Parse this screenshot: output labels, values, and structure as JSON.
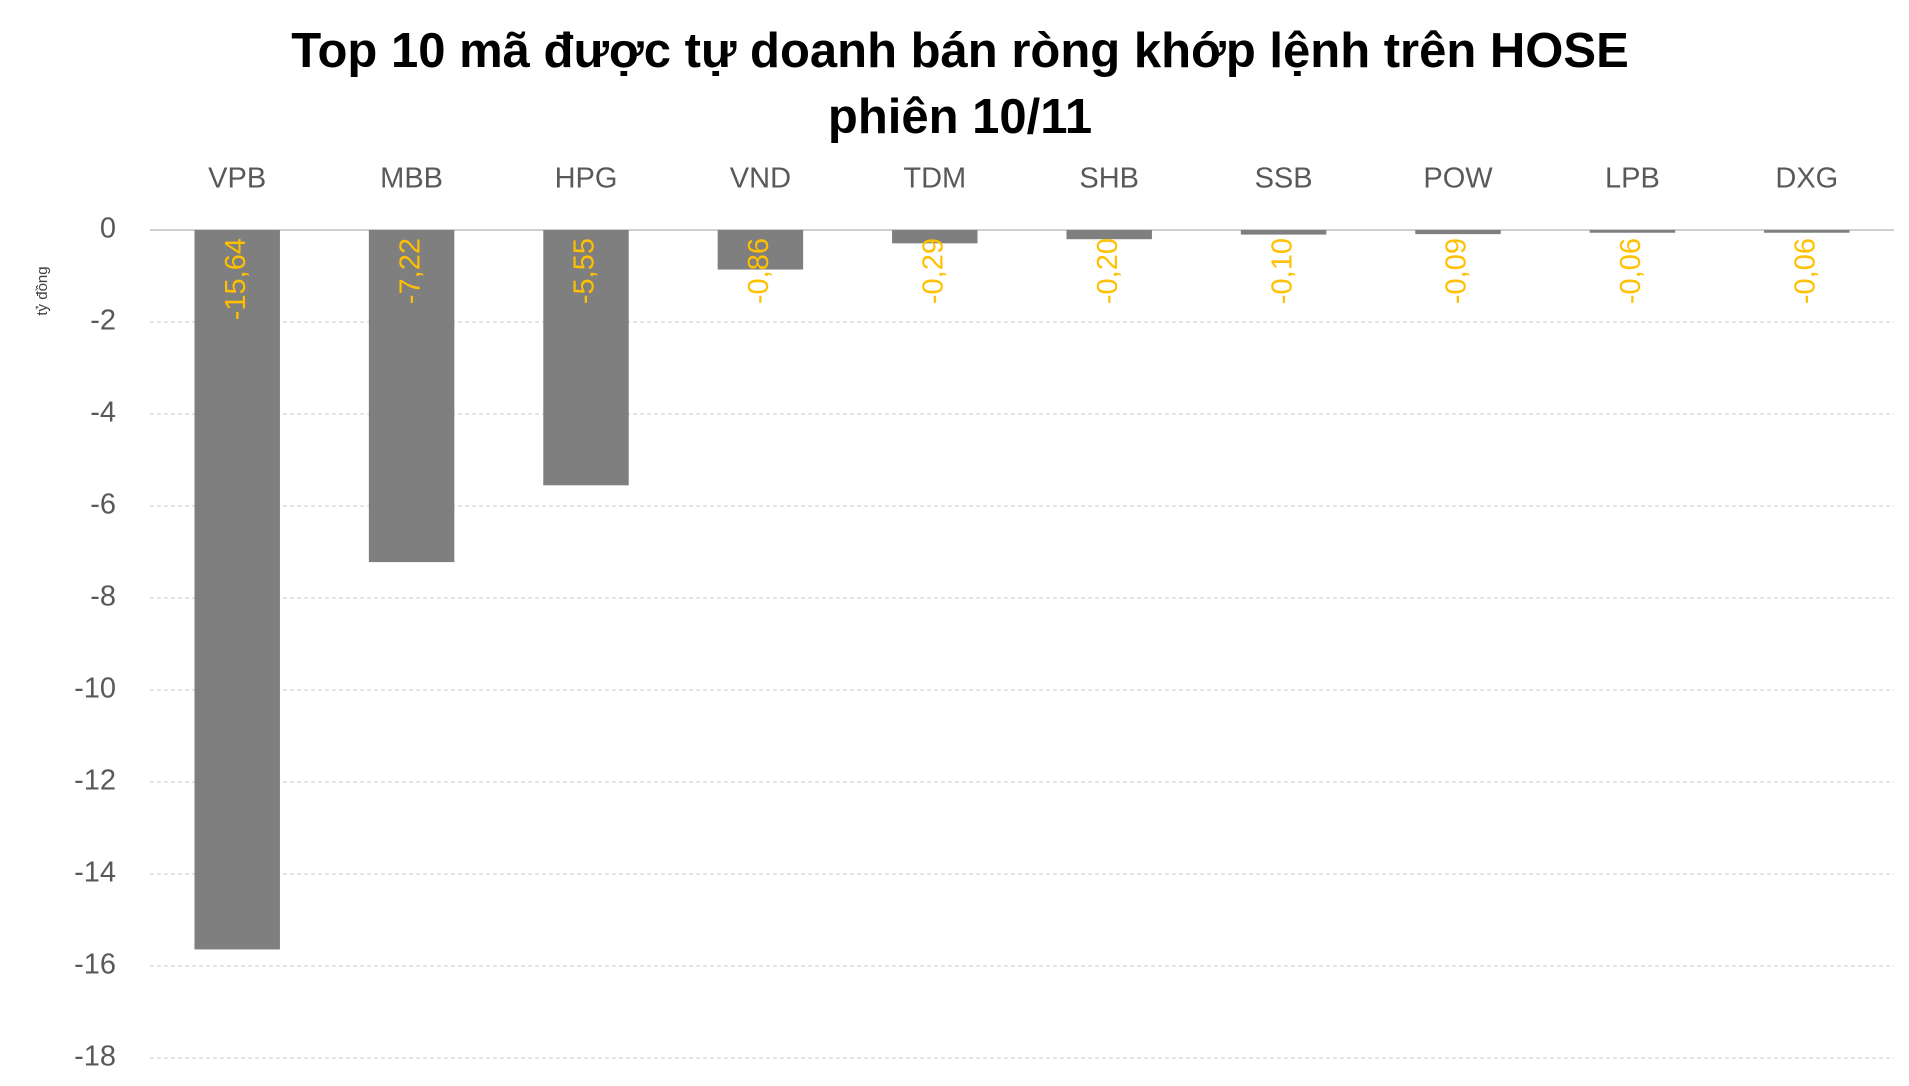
{
  "chart_data": {
    "type": "bar",
    "title": "Top 10 mã được tự doanh bán ròng khớp lệnh trên HOSE phiên 10/11",
    "y_label": "tỷ đồng",
    "categories": [
      "VPB",
      "MBB",
      "HPG",
      "VND",
      "TDM",
      "SHB",
      "SSB",
      "POW",
      "LPB",
      "DXG"
    ],
    "values": [
      -15.64,
      -7.22,
      -5.55,
      -0.86,
      -0.29,
      -0.2,
      -0.1,
      -0.09,
      -0.06,
      -0.06
    ],
    "value_labels": [
      "-15,64",
      "-7,22",
      "-5,55",
      "-0,86",
      "-0,29",
      "-0,20",
      "-0,10",
      "-0,09",
      "-0,06",
      "-0,06"
    ],
    "color": "#7f7f7f",
    "label_color": "#ffc000",
    "ylim": [
      -18,
      0
    ],
    "yticks": [
      0,
      -2,
      -4,
      -6,
      -8,
      -10,
      -12,
      -14,
      -16,
      -18
    ],
    "grid": true
  }
}
